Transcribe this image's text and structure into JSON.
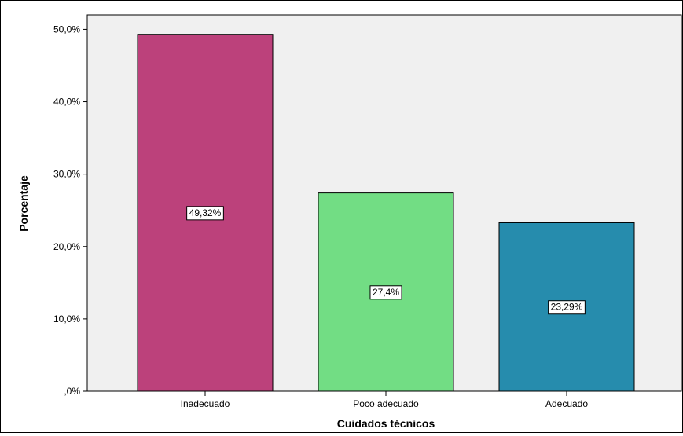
{
  "chart_data": {
    "type": "bar",
    "title": "",
    "xlabel": "Cuidados técnicos",
    "ylabel": "Porcentaje",
    "categories": [
      "Inadecuado",
      "Poco adecuado",
      "Adecuado"
    ],
    "values": [
      49.32,
      27.4,
      23.29
    ],
    "data_labels": [
      "49,32%",
      "27,4%",
      "23,29%"
    ],
    "colors": [
      "#bc417b",
      "#72dd84",
      "#268cad"
    ],
    "ylim": [
      0,
      52
    ],
    "yticks": [
      0,
      10,
      20,
      30,
      40,
      50
    ],
    "ytick_labels": [
      ",0%",
      "10,0%",
      "20,0%",
      "30,0%",
      "40,0%",
      "50,0%"
    ],
    "plot_background": "#f0f0f0",
    "grid": false,
    "legend": "none"
  }
}
